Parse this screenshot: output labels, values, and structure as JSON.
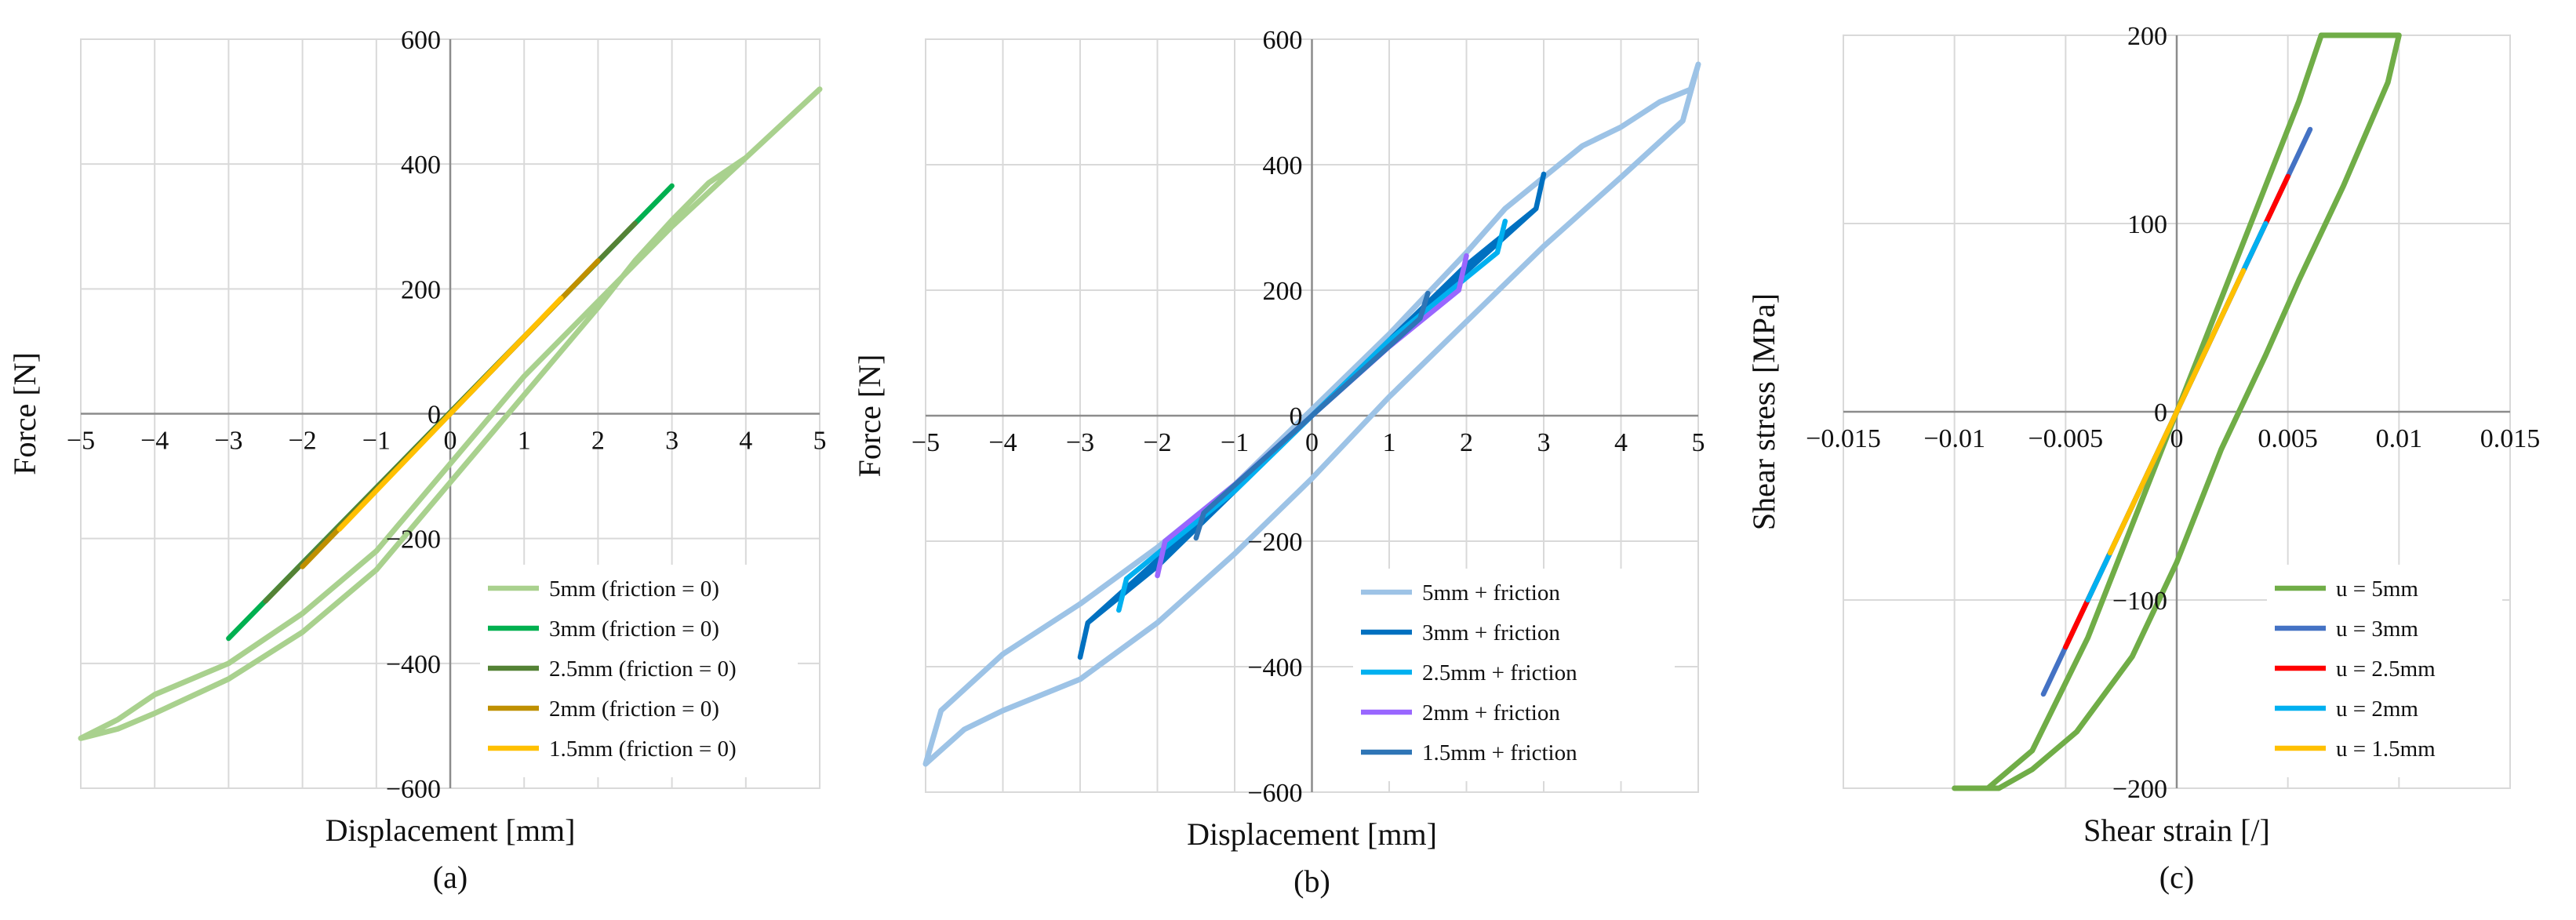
{
  "chart_data": [
    {
      "type": "line",
      "panel_label": "(a)",
      "xlabel": "Displacement [mm]",
      "ylabel": "Force [N]",
      "xlim": [
        -5,
        5
      ],
      "ylim": [
        -600,
        600
      ],
      "xticks": [
        -5,
        -4,
        -3,
        -2,
        -1,
        0,
        1,
        2,
        3,
        4,
        5
      ],
      "yticks": [
        -600,
        -400,
        -200,
        0,
        200,
        400,
        600
      ],
      "xtick_labels": [
        "−5",
        "−4",
        "−3",
        "−2",
        "−1",
        "0",
        "1",
        "2",
        "3",
        "4",
        "5"
      ],
      "ytick_labels": [
        "−600",
        "−400",
        "−200",
        "0",
        "200",
        "400",
        "600"
      ],
      "grid": true,
      "legend_position": "bottom-right",
      "series": [
        {
          "name": "5mm (friction = 0)",
          "color": "#a9d18e",
          "x": [
            -5,
            -4.5,
            -4,
            -3,
            -2,
            -1,
            0,
            1,
            2,
            2.5,
            3,
            3.5,
            4,
            4.5,
            5,
            4,
            3,
            2,
            1,
            0,
            -1,
            -2,
            -3,
            -4,
            -4.5,
            -5
          ],
          "y": [
            -520,
            -505,
            -480,
            -425,
            -350,
            -250,
            -110,
            30,
            170,
            245,
            310,
            370,
            410,
            465,
            520,
            410,
            300,
            180,
            60,
            -80,
            -220,
            -320,
            -400,
            -450,
            -490,
            -520
          ]
        },
        {
          "name": "3mm (friction = 0)",
          "color": "#00b050",
          "x": [
            -3,
            3
          ],
          "y": [
            -360,
            365
          ]
        },
        {
          "name": "2.5mm (friction = 0)",
          "color": "#548235",
          "x": [
            -2.5,
            2.5
          ],
          "y": [
            -300,
            305
          ]
        },
        {
          "name": "2mm (friction = 0)",
          "color": "#bf9000",
          "x": [
            -2,
            2
          ],
          "y": [
            -245,
            245
          ]
        },
        {
          "name": "1.5mm (friction = 0)",
          "color": "#ffc000",
          "x": [
            -1.5,
            1.5
          ],
          "y": [
            -185,
            185
          ]
        }
      ]
    },
    {
      "type": "line",
      "panel_label": "(b)",
      "xlabel": "Displacement [mm]",
      "ylabel": "Force [N]",
      "xlim": [
        -5,
        5
      ],
      "ylim": [
        -600,
        600
      ],
      "xticks": [
        -5,
        -4,
        -3,
        -2,
        -1,
        0,
        1,
        2,
        3,
        4,
        5
      ],
      "yticks": [
        -600,
        -400,
        -200,
        0,
        200,
        400,
        600
      ],
      "xtick_labels": [
        "−5",
        "−4",
        "−3",
        "−2",
        "−1",
        "0",
        "1",
        "2",
        "3",
        "4",
        "5"
      ],
      "ytick_labels": [
        "−600",
        "−400",
        "−200",
        "0",
        "200",
        "400",
        "600"
      ],
      "grid": true,
      "legend_position": "bottom-right",
      "series": [
        {
          "name": "5mm + friction",
          "color": "#9dc3e6",
          "x": [
            -5,
            -4.8,
            -4,
            -3,
            -2,
            -1,
            0,
            1,
            2,
            2.5,
            3,
            3.5,
            4,
            4.5,
            4.9,
            5,
            4.8,
            4,
            3,
            2,
            1,
            0,
            -1,
            -2,
            -3,
            -4,
            -4.5,
            -5
          ],
          "y": [
            -555,
            -470,
            -380,
            -300,
            -210,
            -110,
            10,
            130,
            260,
            330,
            380,
            430,
            460,
            500,
            520,
            560,
            470,
            380,
            270,
            150,
            30,
            -100,
            -220,
            -330,
            -420,
            -470,
            -500,
            -555
          ]
        },
        {
          "name": "3mm + friction",
          "color": "#0070c0",
          "x": [
            -3,
            -2.9,
            -2,
            -1,
            0,
            1,
            2,
            2.9,
            3,
            2.9,
            2,
            1,
            0,
            -1,
            -2,
            -2.9,
            -3
          ],
          "y": [
            -385,
            -330,
            -230,
            -120,
            0,
            120,
            240,
            330,
            385,
            330,
            230,
            120,
            0,
            -120,
            -240,
            -330,
            -385
          ]
        },
        {
          "name": "2.5mm + friction",
          "color": "#00b0f0",
          "x": [
            -2.5,
            -2.4,
            -1,
            0,
            1,
            2.4,
            2.5,
            2.4,
            1,
            0,
            -1,
            -2.4,
            -2.5
          ],
          "y": [
            -310,
            -260,
            -120,
            0,
            120,
            260,
            310,
            260,
            120,
            0,
            -120,
            -260,
            -310
          ]
        },
        {
          "name": "2mm + friction",
          "color": "#9966ff",
          "x": [
            -2,
            -1.9,
            -1,
            0,
            1,
            1.9,
            2,
            1.9,
            1,
            0,
            -1,
            -1.9,
            -2
          ],
          "y": [
            -255,
            -200,
            -110,
            0,
            110,
            200,
            255,
            200,
            110,
            0,
            -110,
            -200,
            -255
          ]
        },
        {
          "name": "1.5mm + friction",
          "color": "#2e75b6",
          "x": [
            -1.5,
            -1.4,
            0,
            1.4,
            1.5,
            1.4,
            0,
            -1.4,
            -1.5
          ],
          "y": [
            -195,
            -155,
            0,
            155,
            195,
            155,
            0,
            -155,
            -195
          ]
        }
      ]
    },
    {
      "type": "line",
      "panel_label": "(c)",
      "xlabel": "Shear strain [/]",
      "ylabel": "Shear stress [MPa]",
      "xlim": [
        -0.015,
        0.015
      ],
      "ylim": [
        -200,
        200
      ],
      "xticks": [
        -0.015,
        -0.01,
        -0.005,
        0,
        0.005,
        0.01,
        0.015
      ],
      "yticks": [
        -200,
        -100,
        0,
        100,
        200
      ],
      "xtick_labels": [
        "−0.015",
        "−0.01",
        "−0.005",
        "0",
        "0.005",
        "0.01",
        "0.015"
      ],
      "ytick_labels": [
        "−200",
        "−100",
        "0",
        "100",
        "200"
      ],
      "grid": true,
      "legend_position": "bottom-right",
      "series": [
        {
          "name": "u = 5mm",
          "color": "#70ad47",
          "x": [
            -0.01,
            -0.0085,
            -0.0065,
            -0.004,
            -0.002,
            0,
            0.002,
            0.004,
            0.0055,
            0.0065,
            0.0085,
            0.01,
            0.0095,
            0.0075,
            0.0055,
            0.004,
            0.002,
            0,
            -0.002,
            -0.0045,
            -0.0065,
            -0.008,
            -0.0095,
            -0.01
          ],
          "y": [
            -200,
            -200,
            -180,
            -120,
            -60,
            0,
            60,
            120,
            165,
            200,
            200,
            200,
            175,
            120,
            70,
            30,
            -20,
            -80,
            -130,
            -170,
            -190,
            -200,
            -200,
            -200
          ]
        },
        {
          "name": "u = 3mm",
          "color": "#4472c4",
          "x": [
            -0.006,
            0.006
          ],
          "y": [
            -150,
            150
          ]
        },
        {
          "name": "u = 2.5mm",
          "color": "#ff0000",
          "x": [
            -0.005,
            0.005
          ],
          "y": [
            -125,
            125
          ]
        },
        {
          "name": "u = 2mm",
          "color": "#00b0f0",
          "x": [
            -0.004,
            0.004
          ],
          "y": [
            -100,
            100
          ]
        },
        {
          "name": "u = 1.5mm",
          "color": "#ffc000",
          "x": [
            -0.003,
            0.003
          ],
          "y": [
            -75,
            75
          ]
        }
      ]
    }
  ]
}
